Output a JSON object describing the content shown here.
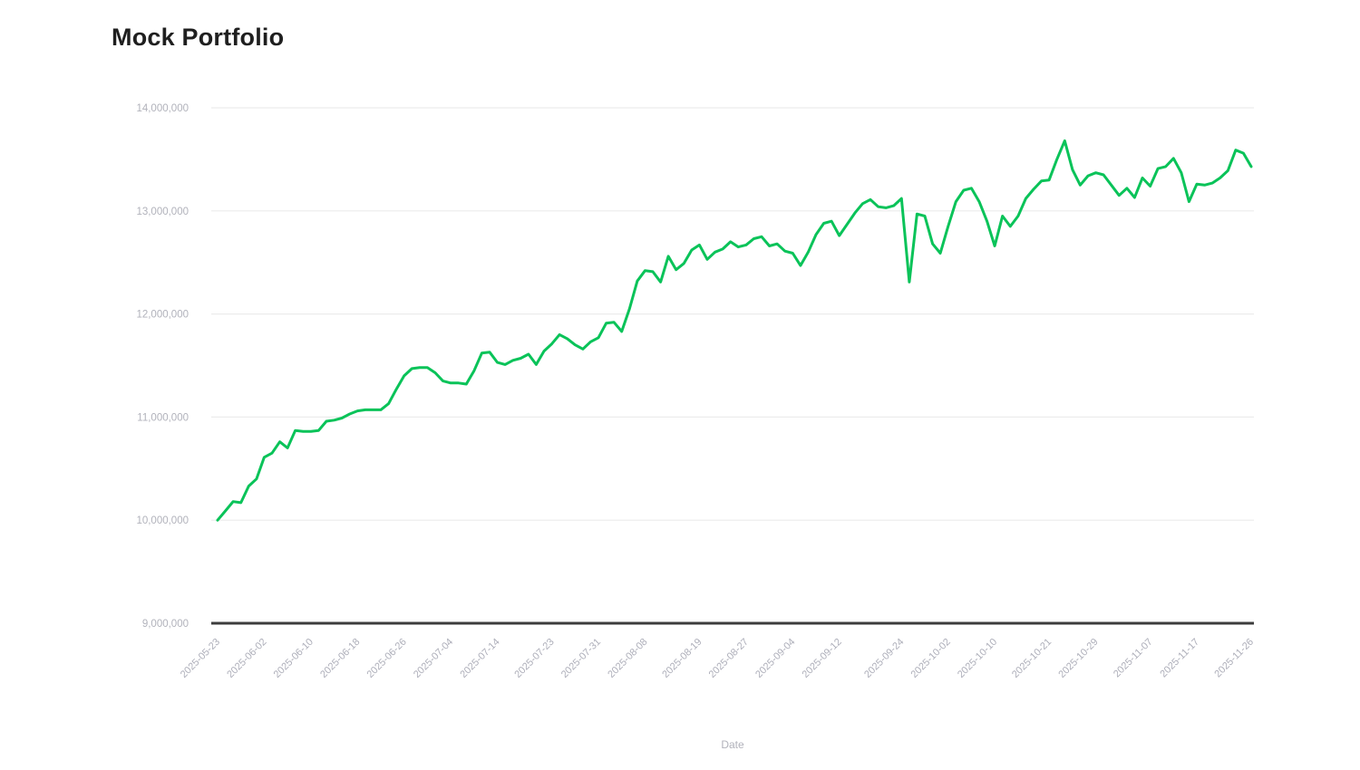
{
  "title": "Mock Portfolio",
  "chart_data": {
    "type": "line",
    "title": "Mock Portfolio",
    "xlabel": "Date",
    "ylabel": "",
    "legend": "none",
    "grid": true,
    "ylim": [
      9000000,
      14000000
    ],
    "y_ticks": [
      9000000,
      10000000,
      11000000,
      12000000,
      13000000,
      14000000
    ],
    "line_color": "#0ac359",
    "grid_color": "#ececec",
    "axis_line_color": "#3d3d3d",
    "tick_color": "#b1b2bb",
    "x_tick_labels": [
      "2025-05-23",
      "2025-06-02",
      "2025-06-10",
      "2025-06-18",
      "2025-06-26",
      "2025-07-04",
      "2025-07-14",
      "2025-07-23",
      "2025-07-31",
      "2025-08-08",
      "2025-08-19",
      "2025-08-27",
      "2025-09-04",
      "2025-09-12",
      "2025-09-24",
      "2025-10-02",
      "2025-10-10",
      "2025-10-21",
      "2025-10-29",
      "2025-11-07",
      "2025-11-17",
      "2025-11-26"
    ],
    "x_dates": [
      "2025-05-23",
      "2025-05-26",
      "2025-05-27",
      "2025-05-28",
      "2025-05-29",
      "2025-05-30",
      "2025-06-02",
      "2025-06-03",
      "2025-06-04",
      "2025-06-05",
      "2025-06-06",
      "2025-06-09",
      "2025-06-10",
      "2025-06-11",
      "2025-06-12",
      "2025-06-13",
      "2025-06-16",
      "2025-06-17",
      "2025-06-18",
      "2025-06-19",
      "2025-06-20",
      "2025-06-23",
      "2025-06-24",
      "2025-06-25",
      "2025-06-26",
      "2025-06-27",
      "2025-06-30",
      "2025-07-01",
      "2025-07-02",
      "2025-07-03",
      "2025-07-04",
      "2025-07-07",
      "2025-07-08",
      "2025-07-09",
      "2025-07-10",
      "2025-07-11",
      "2025-07-14",
      "2025-07-15",
      "2025-07-16",
      "2025-07-17",
      "2025-07-18",
      "2025-07-21",
      "2025-07-22",
      "2025-07-23",
      "2025-07-24",
      "2025-07-25",
      "2025-07-28",
      "2025-07-29",
      "2025-07-30",
      "2025-07-31",
      "2025-08-01",
      "2025-08-04",
      "2025-08-05",
      "2025-08-06",
      "2025-08-07",
      "2025-08-08",
      "2025-08-11",
      "2025-08-12",
      "2025-08-13",
      "2025-08-14",
      "2025-08-15",
      "2025-08-18",
      "2025-08-19",
      "2025-08-20",
      "2025-08-21",
      "2025-08-22",
      "2025-08-25",
      "2025-08-26",
      "2025-08-27",
      "2025-08-28",
      "2025-08-29",
      "2025-09-01",
      "2025-09-02",
      "2025-09-03",
      "2025-09-04",
      "2025-09-05",
      "2025-09-08",
      "2025-09-09",
      "2025-09-10",
      "2025-09-11",
      "2025-09-12",
      "2025-09-15",
      "2025-09-16",
      "2025-09-17",
      "2025-09-18",
      "2025-09-19",
      "2025-09-22",
      "2025-09-23",
      "2025-09-24",
      "2025-09-25",
      "2025-09-26",
      "2025-09-29",
      "2025-09-30",
      "2025-10-01",
      "2025-10-02",
      "2025-10-03",
      "2025-10-06",
      "2025-10-07",
      "2025-10-08",
      "2025-10-09",
      "2025-10-10",
      "2025-10-13",
      "2025-10-14",
      "2025-10-15",
      "2025-10-16",
      "2025-10-17",
      "2025-10-20",
      "2025-10-21",
      "2025-10-22",
      "2025-10-23",
      "2025-10-24",
      "2025-10-27",
      "2025-10-28",
      "2025-10-29",
      "2025-10-30",
      "2025-10-31",
      "2025-11-03",
      "2025-11-04",
      "2025-11-05",
      "2025-11-06",
      "2025-11-07",
      "2025-11-10",
      "2025-11-11",
      "2025-11-12",
      "2025-11-13",
      "2025-11-14",
      "2025-11-17",
      "2025-11-18",
      "2025-11-19",
      "2025-11-20",
      "2025-11-21",
      "2025-11-24",
      "2025-11-25",
      "2025-11-26"
    ],
    "values": [
      10000000,
      10090000,
      10180000,
      10170000,
      10330000,
      10400000,
      10610000,
      10650000,
      10760000,
      10700000,
      10870000,
      10860000,
      10860000,
      10870000,
      10960000,
      10970000,
      10990000,
      11030000,
      11060000,
      11070000,
      11070000,
      11070000,
      11130000,
      11270000,
      11400000,
      11470000,
      11480000,
      11480000,
      11430000,
      11350000,
      11330000,
      11330000,
      11320000,
      11450000,
      11620000,
      11630000,
      11530000,
      11510000,
      11550000,
      11570000,
      11610000,
      11510000,
      11640000,
      11710000,
      11800000,
      11760000,
      11700000,
      11660000,
      11730000,
      11770000,
      11910000,
      11920000,
      11830000,
      12050000,
      12320000,
      12420000,
      12410000,
      12310000,
      12560000,
      12430000,
      12490000,
      12620000,
      12670000,
      12530000,
      12600000,
      12630000,
      12700000,
      12650000,
      12670000,
      12730000,
      12750000,
      12660000,
      12680000,
      12610000,
      12590000,
      12470000,
      12600000,
      12770000,
      12880000,
      12900000,
      12760000,
      12870000,
      12980000,
      13070000,
      13110000,
      13040000,
      13030000,
      13050000,
      13120000,
      12310000,
      12970000,
      12950000,
      12680000,
      12590000,
      12850000,
      13090000,
      13200000,
      13220000,
      13090000,
      12900000,
      12660000,
      12950000,
      12850000,
      12950000,
      13120000,
      13210000,
      13290000,
      13300000,
      13500000,
      13680000,
      13400000,
      13250000,
      13340000,
      13370000,
      13350000,
      13250000,
      13150000,
      13220000,
      13130000,
      13320000,
      13240000,
      13410000,
      13430000,
      13510000,
      13370000,
      13090000,
      13260000,
      13250000,
      13270000,
      13320000,
      13390000,
      13590000,
      13560000,
      13430000
    ]
  }
}
